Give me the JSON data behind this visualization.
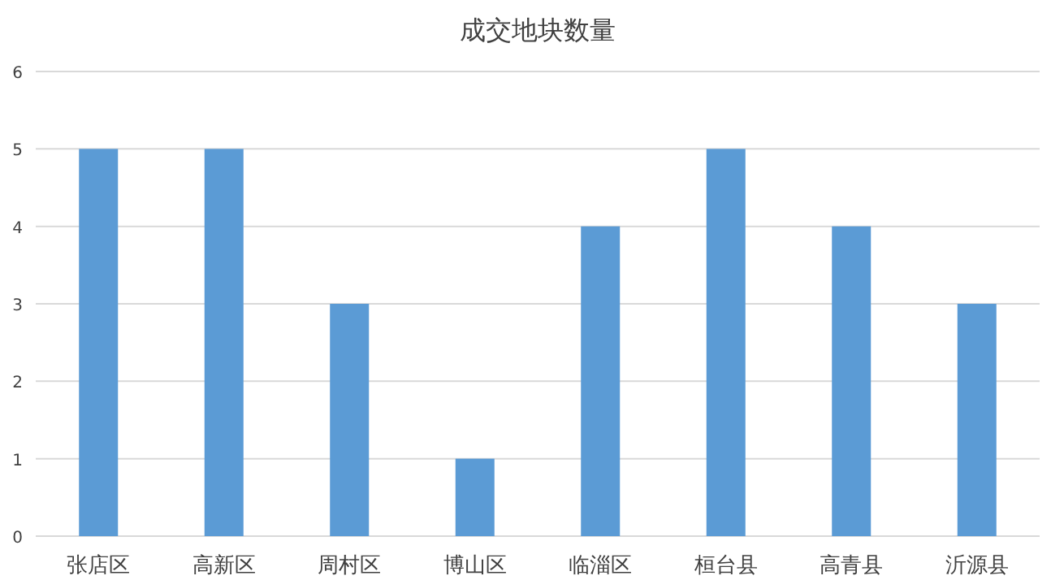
{
  "chart_data": {
    "type": "bar",
    "title": "成交地块数量",
    "categories": [
      "张店区",
      "高新区",
      "周村区",
      "博山区",
      "临淄区",
      "桓台县",
      "高青县",
      "沂源县"
    ],
    "values": [
      5,
      5,
      3,
      1,
      4,
      5,
      4,
      3
    ],
    "color": "#5b9bd5",
    "ylim": [
      0,
      6
    ],
    "yticks": [
      0,
      1,
      2,
      3,
      4,
      5,
      6
    ],
    "grid": "y"
  }
}
